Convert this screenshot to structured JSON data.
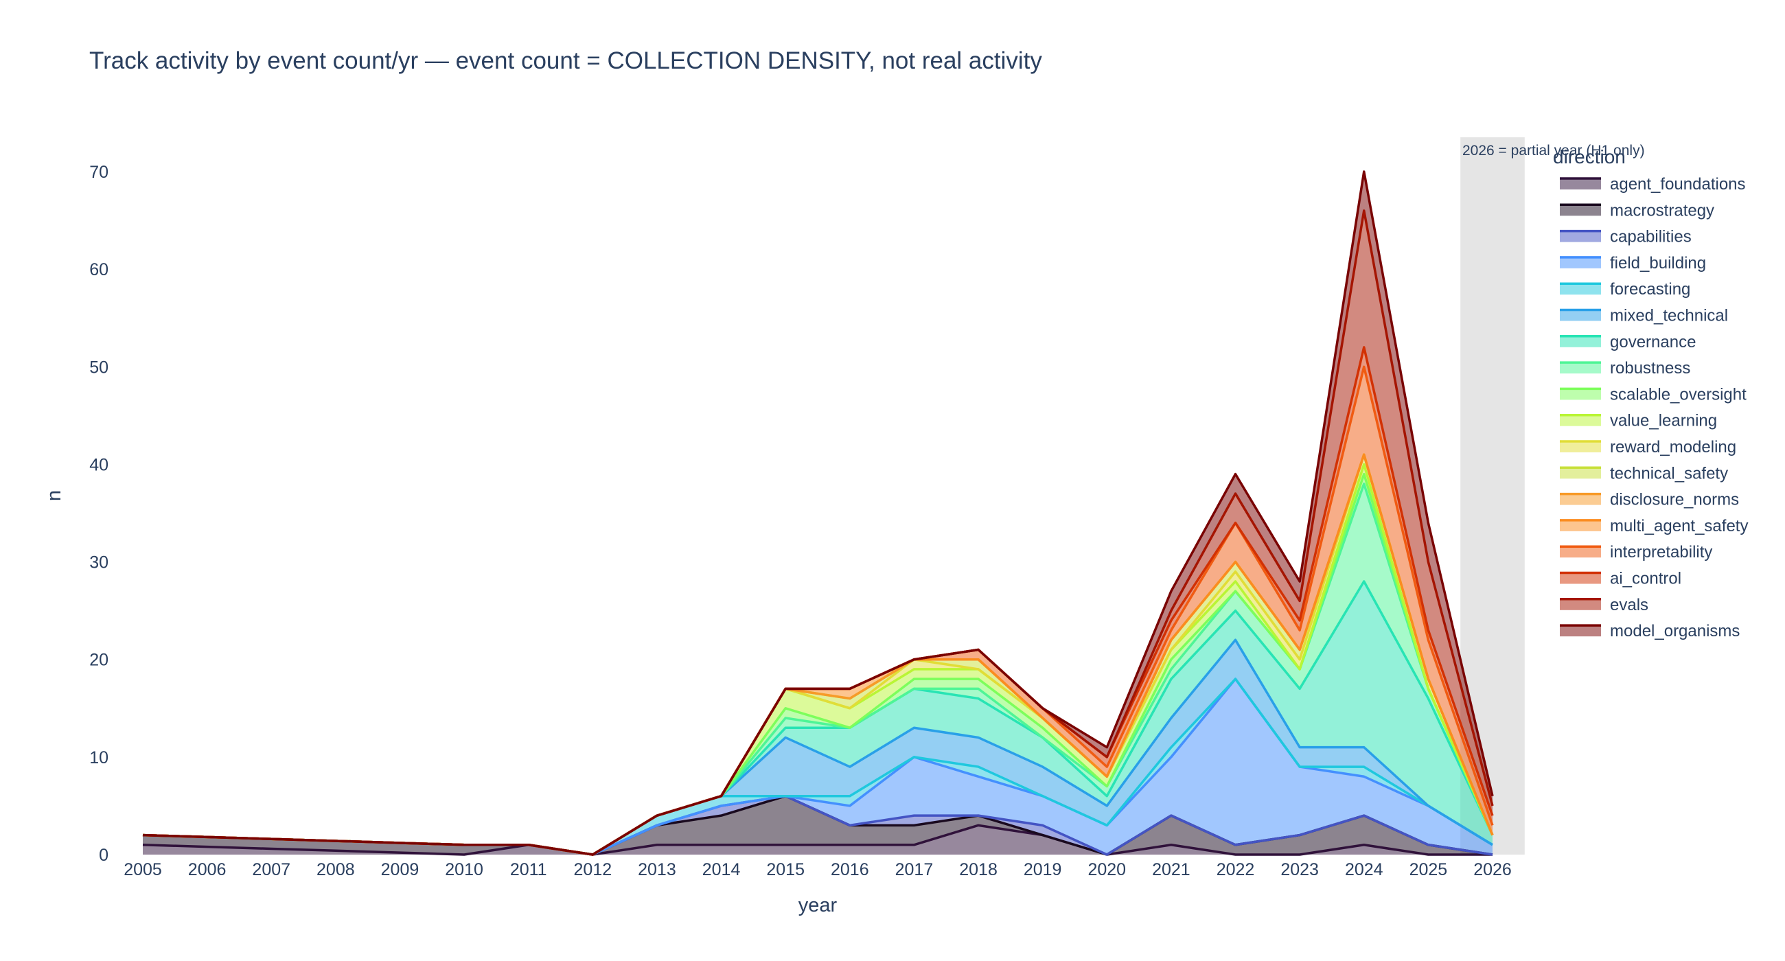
{
  "chart_data": {
    "type": "area",
    "stacked": true,
    "title": "Track activity by event count/yr — event count = COLLECTION DENSITY, not real activity",
    "xlabel": "year",
    "ylabel": "n",
    "x": [
      2005,
      2006,
      2007,
      2008,
      2009,
      2010,
      2011,
      2012,
      2013,
      2014,
      2015,
      2016,
      2017,
      2018,
      2019,
      2020,
      2021,
      2022,
      2023,
      2024,
      2025,
      2026
    ],
    "xlim": [
      2005,
      2026
    ],
    "ylim": [
      0,
      74
    ],
    "yticks": [
      0,
      10,
      20,
      30,
      40,
      50,
      60,
      70
    ],
    "grid": false,
    "legend_title": "direction",
    "legend_position": "right",
    "shaded_region": {
      "x0": 2025.5,
      "x1": 2026.5,
      "color": "#e5e5e5",
      "label": "2026 = partial year (H1 only)"
    },
    "series": [
      {
        "name": "agent_foundations",
        "color": "#30123b",
        "values": [
          1,
          0.8,
          0.6,
          0.4,
          0.2,
          0,
          1,
          0,
          1,
          1,
          1,
          1,
          1,
          3,
          2,
          0,
          1,
          0,
          0,
          1,
          0,
          0
        ]
      },
      {
        "name": "macrostrategy",
        "color": "#1a0a1f",
        "values": [
          1,
          1,
          1,
          1,
          1,
          1,
          0,
          0,
          2,
          3,
          5,
          2,
          2,
          1,
          0,
          0,
          3,
          1,
          2,
          3,
          1,
          0
        ]
      },
      {
        "name": "capabilities",
        "color": "#4454c4",
        "values": [
          0,
          0,
          0,
          0,
          0,
          0,
          0,
          0,
          0,
          1,
          0,
          0,
          1,
          0,
          1,
          0,
          0,
          0,
          0,
          0,
          0,
          0
        ]
      },
      {
        "name": "field_building",
        "color": "#4490fe",
        "values": [
          0,
          0,
          0,
          0,
          0,
          0,
          0,
          0,
          0,
          0,
          0,
          2,
          6,
          4,
          3,
          3,
          6,
          17,
          7,
          4,
          4,
          1
        ]
      },
      {
        "name": "forecasting",
        "color": "#1fc8de",
        "values": [
          0,
          0,
          0,
          0,
          0,
          0,
          0,
          0,
          1,
          1,
          0,
          1,
          0,
          1,
          0,
          0,
          1,
          0,
          0,
          1,
          0,
          0
        ]
      },
      {
        "name": "mixed_technical",
        "color": "#29a0e8",
        "values": [
          0,
          0,
          0,
          0,
          0,
          0,
          0,
          0,
          0,
          0,
          6,
          3,
          3,
          3,
          3,
          2,
          3,
          4,
          2,
          2,
          0,
          0
        ]
      },
      {
        "name": "governance",
        "color": "#28e4b4",
        "values": [
          0,
          0,
          0,
          0,
          0,
          0,
          0,
          0,
          0,
          0,
          1,
          4,
          4,
          4,
          3,
          1,
          4,
          3,
          6,
          17,
          11,
          1
        ]
      },
      {
        "name": "robustness",
        "color": "#4ef596",
        "values": [
          0,
          0,
          0,
          0,
          0,
          0,
          0,
          0,
          0,
          0,
          1,
          0,
          0,
          1,
          0,
          1,
          1,
          2,
          2,
          10,
          1,
          0
        ]
      },
      {
        "name": "scalable_oversight",
        "color": "#7dfe5b",
        "values": [
          0,
          0,
          0,
          0,
          0,
          0,
          0,
          0,
          0,
          0,
          1,
          0,
          1,
          1,
          1,
          0,
          1,
          0,
          0,
          1,
          0,
          0
        ]
      },
      {
        "name": "value_learning",
        "color": "#b9f535",
        "values": [
          0,
          0,
          0,
          0,
          0,
          0,
          0,
          0,
          0,
          0,
          2,
          2,
          1,
          1,
          1,
          1,
          1,
          1,
          0,
          1,
          0,
          0
        ]
      },
      {
        "name": "reward_modeling",
        "color": "#e1dd37",
        "values": [
          0,
          0,
          0,
          0,
          0,
          0,
          0,
          0,
          0,
          0,
          0,
          0,
          1,
          0,
          0,
          0,
          0,
          1,
          1,
          1,
          1,
          0
        ]
      },
      {
        "name": "technical_safety",
        "color": "#c8e03a",
        "values": [
          0,
          0,
          0,
          0,
          0,
          0,
          0,
          0,
          0,
          0,
          0,
          1,
          0,
          1,
          0,
          0,
          1,
          1,
          1,
          0,
          0,
          0
        ]
      },
      {
        "name": "disclosure_norms",
        "color": "#f79a28",
        "values": [
          0,
          0,
          0,
          0,
          0,
          0,
          0,
          0,
          0,
          0,
          0,
          0,
          0,
          0,
          0,
          0,
          0,
          0,
          0,
          0,
          0,
          0
        ]
      },
      {
        "name": "multi_agent_safety",
        "color": "#fb8c1f",
        "values": [
          0,
          0,
          0,
          0,
          0,
          0,
          0,
          0,
          0,
          0,
          0,
          1,
          0,
          0,
          0,
          0,
          0,
          0,
          0,
          0,
          0,
          0
        ]
      },
      {
        "name": "interpretability",
        "color": "#f05b12",
        "values": [
          0,
          0,
          0,
          0,
          0,
          0,
          0,
          0,
          0,
          0,
          0,
          0,
          0,
          1,
          1,
          1,
          1,
          4,
          2,
          9,
          4,
          1
        ]
      },
      {
        "name": "ai_control",
        "color": "#d23104",
        "values": [
          0,
          0,
          0,
          0,
          0,
          0,
          0,
          0,
          0,
          0,
          0,
          0,
          0,
          0,
          0,
          1,
          1,
          0,
          1,
          2,
          1,
          1
        ]
      },
      {
        "name": "evals",
        "color": "#a51502",
        "values": [
          0,
          0,
          0,
          0,
          0,
          0,
          0,
          0,
          0,
          0,
          0,
          0,
          0,
          0,
          0,
          0,
          1,
          3,
          2,
          14,
          7,
          1
        ]
      },
      {
        "name": "model_organisms",
        "color": "#7a0403",
        "values": [
          0,
          0,
          0,
          0,
          0,
          0,
          0,
          0,
          0,
          0,
          0,
          0,
          0,
          0,
          0,
          1,
          2,
          2,
          2,
          4,
          4,
          1
        ]
      }
    ]
  }
}
